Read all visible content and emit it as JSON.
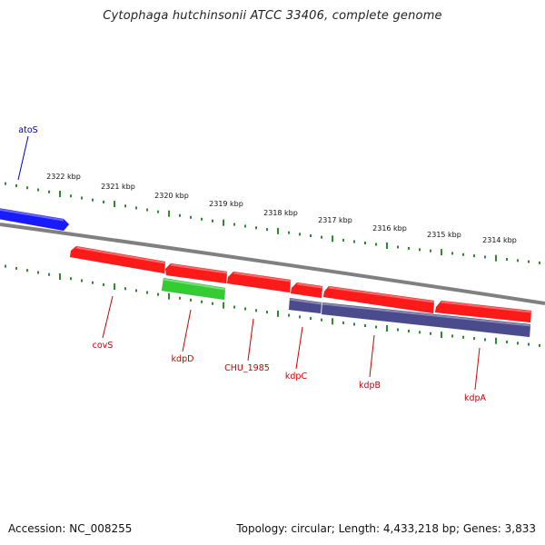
{
  "title": "Cytophaga hutchinsonii ATCC 33406, complete genome",
  "footer": {
    "accession": "Accession: NC_008255",
    "summary": "Topology: circular; Length: 4,433,218 bp; Genes: 3,833"
  },
  "colors": {
    "backbone": "#808080",
    "tick": "#2e8b2e",
    "red_gene": "#ff1a1a",
    "green_gene": "#33cc33",
    "purple_gene": "#4b4a8c",
    "blue_gene": "#1a1aff",
    "red_label": "#cc0000",
    "blue_label": "#0000bb"
  },
  "kbp_ticks": [
    "2322 kbp",
    "2321 kbp",
    "2320 kbp",
    "2319 kbp",
    "2318 kbp",
    "2317 kbp",
    "2316 kbp",
    "2315 kbp",
    "2314 kbp"
  ],
  "genes": [
    {
      "label": "atoS",
      "color": "blue_gene",
      "label_color": "blue_label"
    },
    {
      "label": "covS",
      "color": "red_gene",
      "label_color": "red_label"
    },
    {
      "label": "",
      "color": "red_gene",
      "label_color": "red_label"
    },
    {
      "label": "kdpD",
      "color": "green_gene",
      "label_color": "red_label"
    },
    {
      "label": "CHU_1985",
      "color": "red_gene",
      "label_color": "red_label"
    },
    {
      "label": "kdpC",
      "color": "red_gene",
      "label_color": "red_label"
    },
    {
      "label": "kdpB",
      "color": "red_gene",
      "label_color": "red_label"
    },
    {
      "label": "kdpA",
      "color": "red_gene",
      "label_color": "red_label"
    },
    {
      "label": "",
      "color": "purple_gene",
      "label_color": "red_label"
    },
    {
      "label": "",
      "color": "purple_gene",
      "label_color": "red_label"
    }
  ]
}
